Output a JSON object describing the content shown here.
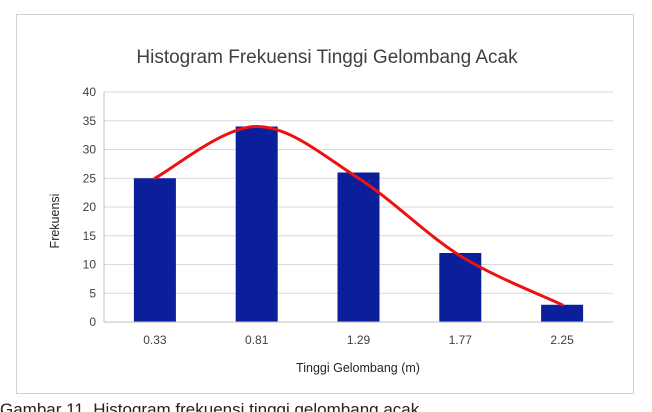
{
  "chart_data": {
    "type": "bar",
    "title": "Histogram Frekuensi Tinggi Gelombang Acak",
    "xlabel": "Tinggi Gelombang (m)",
    "ylabel": "Frekuensi",
    "categories": [
      "0.33",
      "0.81",
      "1.29",
      "1.77",
      "2.25"
    ],
    "values": [
      25,
      34,
      26,
      12,
      3
    ],
    "curve": [
      25,
      34,
      25,
      11.5,
      3
    ],
    "ylim": [
      0,
      40
    ],
    "yticks": [
      "0",
      "5",
      "10",
      "15",
      "20",
      "25",
      "30",
      "35",
      "40"
    ],
    "grid": true,
    "legend": "none",
    "bar_color": "#0a1f99",
    "curve_color": "#ee1111",
    "grid_color": "#d9d9d9"
  },
  "caption": "Gambar 11. Histogram frekuensi tinggi gelombang acak"
}
